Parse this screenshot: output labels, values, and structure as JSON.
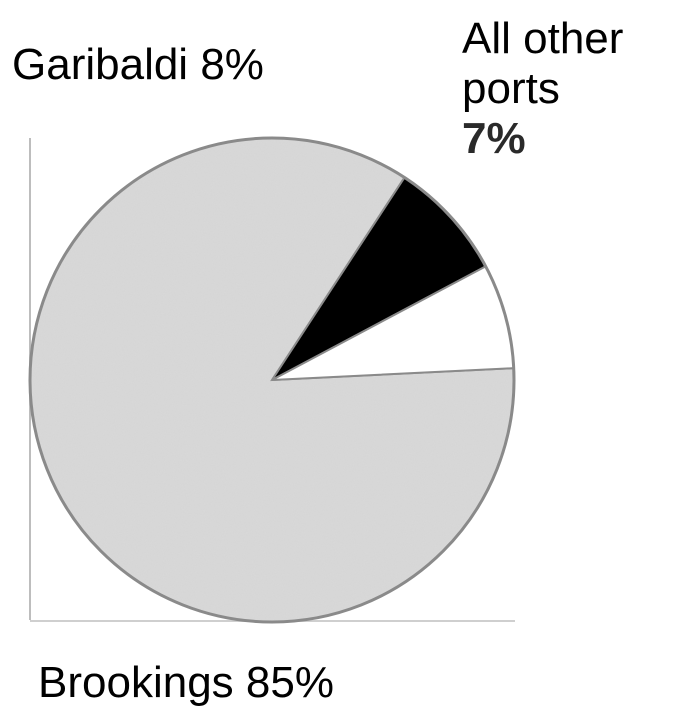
{
  "chart_data": {
    "type": "pie",
    "title": "",
    "slices": [
      {
        "label": "Brookings",
        "value": 85,
        "value_label": "85%",
        "color": "#d9d9d9"
      },
      {
        "label": "Garibaldi",
        "value": 8,
        "value_label": "8%",
        "color": "#000000"
      },
      {
        "label": "All other ports",
        "label_lines": [
          "All other",
          "ports"
        ],
        "value": 7,
        "value_label": "7%",
        "color": "#ffffff"
      }
    ],
    "legend": "none",
    "labels_placement": "outside"
  }
}
